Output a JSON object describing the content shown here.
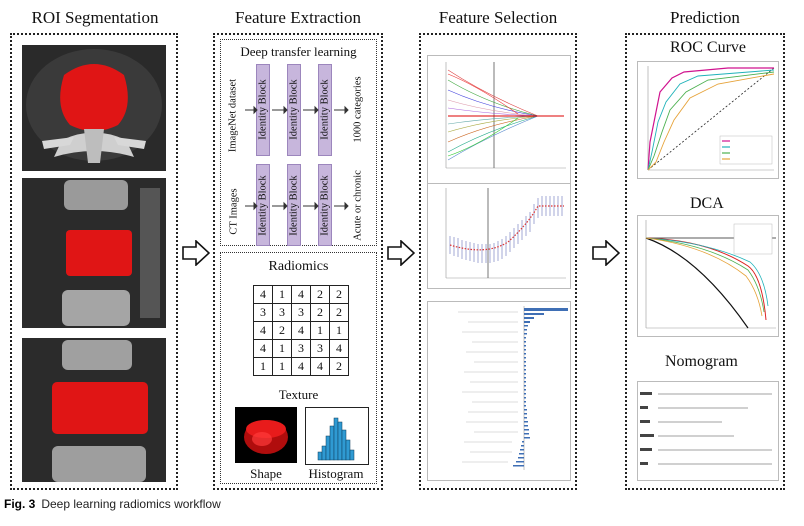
{
  "columns": {
    "roi": "ROI Segmentation",
    "feature_extraction": "Feature Extraction",
    "feature_selection": "Feature Selection",
    "prediction": "Prediction"
  },
  "deep_transfer": {
    "title": "Deep transfer learning",
    "row1_input": "ImageNet dataset",
    "row1_output": "1000 categories",
    "row2_input": "CT Images",
    "row2_output": "Acute or chronic",
    "block_label": "Identity Block"
  },
  "radiomics": {
    "title": "Radiomics",
    "texture_label": "Texture",
    "shape_label": "Shape",
    "histogram_label": "Histogram",
    "matrix": [
      [
        "4",
        "1",
        "4",
        "2",
        "2"
      ],
      [
        "3",
        "3",
        "3",
        "2",
        "2"
      ],
      [
        "4",
        "2",
        "4",
        "1",
        "1"
      ],
      [
        "4",
        "1",
        "3",
        "3",
        "4"
      ],
      [
        "1",
        "1",
        "4",
        "4",
        "2"
      ]
    ]
  },
  "prediction": {
    "roc_title": "ROC Curve",
    "dca_title": "DCA",
    "nomogram_title": "Nomogram"
  },
  "caption": {
    "fig": "Fig. 3",
    "text": "Deep learning radiomics workflow"
  },
  "colors": {
    "roi_red": "#e01515",
    "block_purple": "#c7b6dc",
    "hist_blue": "#2f9ad2",
    "selection_blue": "#3f6fb5"
  }
}
